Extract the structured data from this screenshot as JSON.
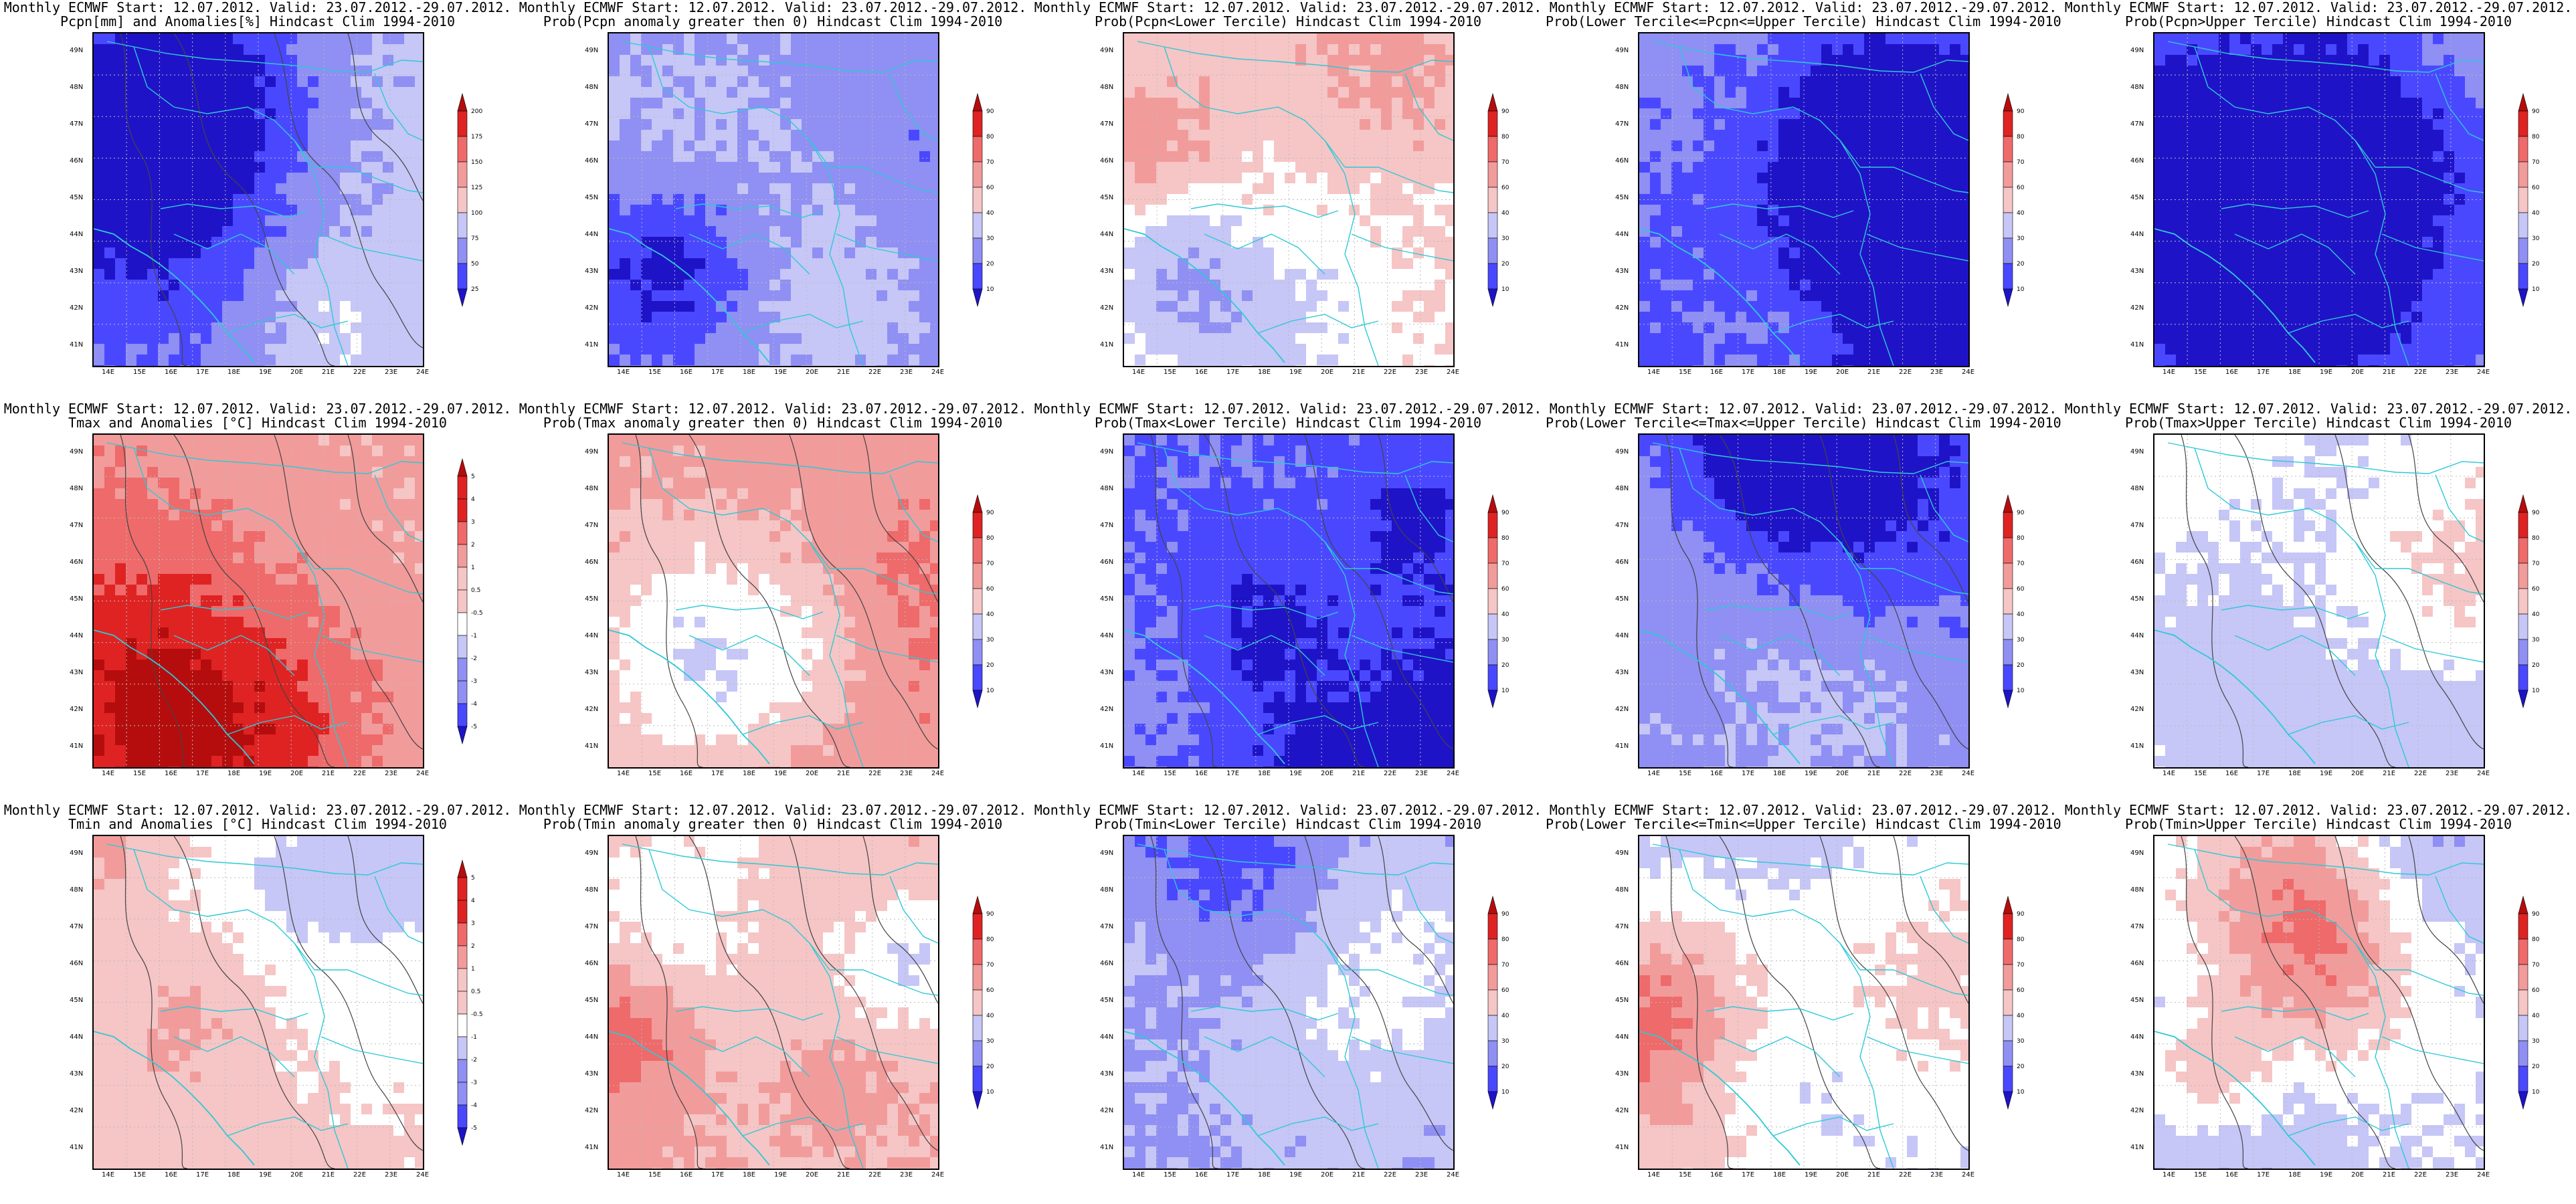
{
  "colors": {
    "palette": [
      "#1f13c8",
      "#4a48ff",
      "#8f8ff4",
      "#c6c6f7",
      "#ffffff",
      "#f6c5c5",
      "#f29b9b",
      "#ef6a6a",
      "#df2323",
      "#b50d0d"
    ],
    "border_line": "#2ec9d6",
    "contour_line": "#444444"
  },
  "axes": {
    "lat_labels": [
      "49N",
      "48N",
      "47N",
      "46N",
      "45N",
      "44N",
      "43N",
      "42N",
      "41N"
    ],
    "lon_labels": [
      "14E",
      "15E",
      "16E",
      "17E",
      "18E",
      "19E",
      "20E",
      "21E",
      "22E",
      "23E",
      "24E"
    ]
  },
  "colorbars": {
    "prob": [
      "10",
      "20",
      "30",
      "40",
      "60",
      "70",
      "80",
      "90"
    ],
    "pcpn": [
      "25",
      "50",
      "75",
      "100",
      "125",
      "150",
      "175",
      "200"
    ],
    "temp": [
      "-5",
      "-4",
      "-3",
      "-2",
      "-1",
      "-0.5",
      "0.5",
      "1",
      "2",
      "3",
      "4",
      "5"
    ]
  },
  "panels": [
    {
      "row": 0,
      "col": 0,
      "title1": "Monthly ECMWF Start: 12.07.2012. Valid: 23.07.2012.-29.07.2012.",
      "title2": "Pcpn[mm] and Anomalies[%] Hindcast Clim 1994-2010",
      "bar": "pcpn",
      "base": 3,
      "var": 1.0,
      "seed": 11
    },
    {
      "row": 0,
      "col": 1,
      "title1": "Monthly ECMWF Start: 12.07.2012. Valid: 23.07.2012.-29.07.2012.",
      "title2": "Prob(Pcpn anomaly greater then 0) Hindcast Clim 1994-2010",
      "bar": "prob",
      "base": 2.0,
      "var": 1.0,
      "seed": 23
    },
    {
      "row": 0,
      "col": 2,
      "title1": "Monthly ECMWF Start: 12.07.2012. Valid: 23.07.2012.-29.07.2012.",
      "title2": "Prob(Pcpn<Lower Tercile) Hindcast Clim 1994-2010",
      "bar": "prob",
      "base": 4.6,
      "var": 1.2,
      "seed": 37
    },
    {
      "row": 0,
      "col": 3,
      "title1": "Monthly ECMWF Start: 12.07.2012. Valid: 23.07.2012.-29.07.2012.",
      "title2": "Prob(Lower Tercile<=Pcpn<=Upper Tercile) Hindcast Clim 1994-2010",
      "bar": "prob",
      "base": 2.0,
      "var": 1.2,
      "seed": 41
    },
    {
      "row": 0,
      "col": 4,
      "title1": "Monthly ECMWF Start: 12.07.2012. Valid: 23.07.2012.-29.07.2012.",
      "title2": "Prob(Pcpn>Upper Tercile) Hindcast Clim 1994-2010",
      "bar": "prob",
      "base": 2.0,
      "var": 1.0,
      "seed": 53
    },
    {
      "row": 1,
      "col": 0,
      "title1": "Monthly ECMWF Start: 12.07.2012. Valid: 23.07.2012.-29.07.2012.",
      "title2": "Tmax and Anomalies [°C] Hindcast Clim 1994-2010",
      "bar": "temp",
      "base": 5.6,
      "var": 1.0,
      "seed": 61
    },
    {
      "row": 1,
      "col": 1,
      "title1": "Monthly ECMWF Start: 12.07.2012. Valid: 23.07.2012.-29.07.2012.",
      "title2": "Prob(Tmax anomaly greater then 0) Hindcast Clim 1994-2010",
      "bar": "prob",
      "base": 6.0,
      "var": 1.1,
      "seed": 71
    },
    {
      "row": 1,
      "col": 2,
      "title1": "Monthly ECMWF Start: 12.07.2012. Valid: 23.07.2012.-29.07.2012.",
      "title2": "Prob(Tmax<Lower Tercile) Hindcast Clim 1994-2010",
      "bar": "prob",
      "base": 1.4,
      "var": 1.0,
      "seed": 83
    },
    {
      "row": 1,
      "col": 3,
      "title1": "Monthly ECMWF Start: 12.07.2012. Valid: 23.07.2012.-29.07.2012.",
      "title2": "Prob(Lower Tercile<=Tmax<=Upper Tercile) Hindcast Clim 1994-2010",
      "bar": "prob",
      "base": 2.2,
      "var": 1.0,
      "seed": 97
    },
    {
      "row": 1,
      "col": 4,
      "title1": "Monthly ECMWF Start: 12.07.2012. Valid: 23.07.2012.-29.07.2012.",
      "title2": "Prob(Tmax>Upper Tercile) Hindcast Clim 1994-2010",
      "bar": "prob",
      "base": 4.4,
      "var": 1.0,
      "seed": 101
    },
    {
      "row": 2,
      "col": 0,
      "title1": "Monthly ECMWF Start: 12.07.2012. Valid: 23.07.2012.-29.07.2012.",
      "title2": "Tmin and Anomalies [°C] Hindcast Clim 1994-2010",
      "bar": "temp",
      "base": 5.0,
      "var": 0.8,
      "seed": 113
    },
    {
      "row": 2,
      "col": 1,
      "title1": "Monthly ECMWF Start: 12.07.2012. Valid: 23.07.2012.-29.07.2012.",
      "title2": "Prob(Tmin anomaly greater then 0) Hindcast Clim 1994-2010",
      "bar": "prob",
      "base": 5.4,
      "var": 1.0,
      "seed": 127
    },
    {
      "row": 2,
      "col": 2,
      "title1": "Monthly ECMWF Start: 12.07.2012. Valid: 23.07.2012.-29.07.2012.",
      "title2": "Prob(Tmin<Lower Tercile) Hindcast Clim 1994-2010",
      "bar": "prob",
      "base": 2.2,
      "var": 1.0,
      "seed": 131
    },
    {
      "row": 2,
      "col": 3,
      "title1": "Monthly ECMWF Start: 12.07.2012. Valid: 23.07.2012.-29.07.2012.",
      "title2": "Prob(Lower Tercile<=Tmin<=Upper Tercile) Hindcast Clim 1994-2010",
      "bar": "prob",
      "base": 3.0,
      "var": 1.1,
      "seed": 139
    },
    {
      "row": 2,
      "col": 4,
      "title1": "Monthly ECMWF Start: 12.07.2012. Valid: 23.07.2012.-29.07.2012.",
      "title2": "Prob(Tmin>Upper Tercile) Hindcast Clim 1994-2010",
      "bar": "prob",
      "base": 3.4,
      "var": 1.2,
      "seed": 149
    }
  ]
}
